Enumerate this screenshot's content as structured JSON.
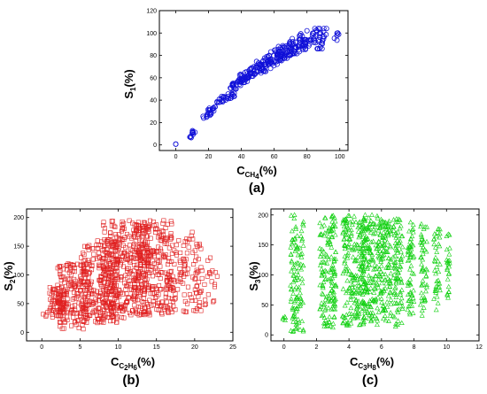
{
  "chart_data": [
    {
      "id": "a",
      "type": "scatter",
      "marker": "circle",
      "color": "#1010d8",
      "panel_label": "(a)",
      "ylabel": {
        "main": "S",
        "sub": "1",
        "suffix": "(%)"
      },
      "xlabel": {
        "main": "C",
        "sub": "CH",
        "sub2": "4",
        "suffix": "(%)"
      },
      "xlim": [
        -10,
        105
      ],
      "ylim": [
        -5,
        120
      ],
      "xticks": [
        0,
        20,
        40,
        60,
        80,
        100
      ],
      "yticks": [
        0,
        20,
        40,
        60,
        80,
        100,
        120
      ],
      "clusters": [
        {
          "x": [
            0,
            0
          ],
          "y": [
            0,
            1
          ],
          "n": 2
        },
        {
          "x": [
            8,
            12
          ],
          "y": [
            6,
            14
          ],
          "n": 12
        },
        {
          "x": [
            16,
            24
          ],
          "y": [
            24,
            34
          ],
          "n": 22
        },
        {
          "x": [
            24,
            36
          ],
          "y": [
            38,
            46
          ],
          "n": 28
        },
        {
          "x": [
            33,
            45
          ],
          "y": [
            50,
            60
          ],
          "n": 36
        },
        {
          "x": [
            38,
            55
          ],
          "y": [
            58,
            72
          ],
          "n": 48
        },
        {
          "x": [
            45,
            68
          ],
          "y": [
            64,
            84
          ],
          "n": 60
        },
        {
          "x": [
            55,
            80
          ],
          "y": [
            74,
            94
          ],
          "n": 70
        },
        {
          "x": [
            62,
            92
          ],
          "y": [
            80,
            104
          ],
          "n": 80
        },
        {
          "x": [
            85,
            100
          ],
          "y": [
            86,
            100
          ],
          "n": 16
        }
      ]
    },
    {
      "id": "b",
      "type": "scatter",
      "marker": "square",
      "color": "#e02020",
      "panel_label": "(b)",
      "ylabel": {
        "main": "S",
        "sub": "2",
        "suffix": "(%)"
      },
      "xlabel": {
        "main": "C",
        "sub": "C",
        "sub2": "2",
        "sub3": "H",
        "sub4": "6",
        "suffix": "(%)"
      },
      "xlim": [
        -2,
        25
      ],
      "ylim": [
        -15,
        215
      ],
      "xticks": [
        0,
        5,
        10,
        15,
        20,
        25
      ],
      "yticks": [
        0,
        50,
        100,
        150,
        200
      ],
      "clusters": [
        {
          "x": [
            0,
            1
          ],
          "y": [
            25,
            35
          ],
          "n": 4
        },
        {
          "x": [
            1,
            3
          ],
          "y": [
            25,
            80
          ],
          "n": 70
        },
        {
          "x": [
            2,
            6
          ],
          "y": [
            5,
            120
          ],
          "n": 160
        },
        {
          "x": [
            5,
            10
          ],
          "y": [
            15,
            160
          ],
          "n": 260
        },
        {
          "x": [
            8,
            14
          ],
          "y": [
            25,
            195
          ],
          "n": 320
        },
        {
          "x": [
            12,
            17
          ],
          "y": [
            30,
            195
          ],
          "n": 240
        },
        {
          "x": [
            16,
            21
          ],
          "y": [
            35,
            175
          ],
          "n": 120
        },
        {
          "x": [
            20,
            23
          ],
          "y": [
            45,
            165
          ],
          "n": 30
        }
      ]
    },
    {
      "id": "c",
      "type": "scatter",
      "marker": "triangle",
      "color": "#10d010",
      "panel_label": "(c)",
      "ylabel": {
        "main": "S",
        "sub": "3",
        "suffix": "(%)"
      },
      "xlabel": {
        "main": "C",
        "sub": "C",
        "sub2": "3",
        "sub3": "H",
        "sub4": "8",
        "suffix": "(%)"
      },
      "xlim": [
        -0.8,
        12
      ],
      "ylim": [
        -10,
        210
      ],
      "xticks": [
        0,
        2,
        4,
        6,
        8,
        10,
        12
      ],
      "yticks": [
        0,
        50,
        100,
        150,
        200
      ],
      "columns": [
        {
          "x": 0.0,
          "w": 0.1,
          "y": [
            22,
            32
          ],
          "n": 5
        },
        {
          "x": 0.8,
          "w": 0.4,
          "y": [
            5,
            200
          ],
          "n": 110
        },
        {
          "x": 2.7,
          "w": 0.5,
          "y": [
            10,
            200
          ],
          "n": 150
        },
        {
          "x": 4.3,
          "w": 0.7,
          "y": [
            15,
            200
          ],
          "n": 200
        },
        {
          "x": 5.3,
          "w": 0.5,
          "y": [
            15,
            200
          ],
          "n": 160
        },
        {
          "x": 6.2,
          "w": 0.4,
          "y": [
            20,
            195
          ],
          "n": 130
        },
        {
          "x": 7.0,
          "w": 0.3,
          "y": [
            10,
            195
          ],
          "n": 90
        },
        {
          "x": 7.8,
          "w": 0.2,
          "y": [
            30,
            190
          ],
          "n": 60
        },
        {
          "x": 8.6,
          "w": 0.2,
          "y": [
            30,
            185
          ],
          "n": 50
        },
        {
          "x": 9.4,
          "w": 0.2,
          "y": [
            40,
            180
          ],
          "n": 40
        },
        {
          "x": 10.1,
          "w": 0.1,
          "y": [
            50,
            175
          ],
          "n": 25
        }
      ]
    }
  ]
}
